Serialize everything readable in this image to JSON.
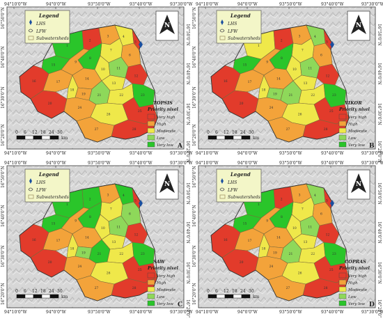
{
  "panels": [
    {
      "letter": "A",
      "method": "TOPSIS",
      "colors": [
        "#2ac52a",
        "#e23b2b",
        "#f3a33a",
        "#efe84a",
        "#e23b2b",
        "#f3a33a",
        "#efe84a",
        "#2ac52a",
        "#f3a33a",
        "#efe84a",
        "#8ed85a",
        "#e23b2b",
        "#efe84a",
        "#f3a33a",
        "#2ac52a",
        "#e23b2b",
        "#f3a33a",
        "#efe84a",
        "#f3a33a",
        "#e23b2b",
        "#8ed85a",
        "#efe84a",
        "#2ac52a",
        "#f3a33a",
        "#e23b2b",
        "#efe84a",
        "#f3a33a",
        "#e23b2b"
      ]
    },
    {
      "letter": "B",
      "method": "VIKOR",
      "colors": [
        "#efe84a",
        "#e23b2b",
        "#f3a33a",
        "#8ed85a",
        "#e23b2b",
        "#f3a33a",
        "#efe84a",
        "#2ac52a",
        "#f3a33a",
        "#efe84a",
        "#8ed85a",
        "#e23b2b",
        "#efe84a",
        "#f3a33a",
        "#2ac52a",
        "#e23b2b",
        "#f3a33a",
        "#efe84a",
        "#8ed85a",
        "#e23b2b",
        "#8ed85a",
        "#efe84a",
        "#2ac52a",
        "#f3a33a",
        "#e23b2b",
        "#efe84a",
        "#f3a33a",
        "#e23b2b"
      ]
    },
    {
      "letter": "C",
      "method": "SAW",
      "colors": [
        "#2ac52a",
        "#2ac52a",
        "#f3a33a",
        "#2ac52a",
        "#e23b2b",
        "#8ed85a",
        "#efe84a",
        "#2ac52a",
        "#f3a33a",
        "#efe84a",
        "#8ed85a",
        "#e23b2b",
        "#efe84a",
        "#f3a33a",
        "#2ac52a",
        "#e23b2b",
        "#f3a33a",
        "#efe84a",
        "#8ed85a",
        "#e23b2b",
        "#2ac52a",
        "#efe84a",
        "#2ac52a",
        "#f3a33a",
        "#e23b2b",
        "#efe84a",
        "#f3a33a",
        "#e23b2b"
      ]
    },
    {
      "letter": "D",
      "method": "COPRAS",
      "colors": [
        "#2ac52a",
        "#e23b2b",
        "#f3a33a",
        "#8ed85a",
        "#e23b2b",
        "#f3a33a",
        "#efe84a",
        "#2ac52a",
        "#f3a33a",
        "#efe84a",
        "#8ed85a",
        "#e23b2b",
        "#efe84a",
        "#f3a33a",
        "#2ac52a",
        "#e23b2b",
        "#f3a33a",
        "#efe84a",
        "#f3a33a",
        "#e23b2b",
        "#8ed85a",
        "#efe84a",
        "#2ac52a",
        "#f3a33a",
        "#e23b2b",
        "#efe84a",
        "#f3a33a",
        "#e23b2b"
      ]
    }
  ],
  "top_ticks": [
    "94°10'0\"W",
    "94°0'0\"W",
    "93°50'0\"W",
    "93°40'0\"W",
    "93°30'0\"W"
  ],
  "left_ticks": [
    "16°50'0\"N",
    "16°40'0\"N",
    "16°30'0\"N",
    "16°20'0\"N"
  ],
  "legend": {
    "title": "Legend",
    "items": [
      "LHS",
      "LFW",
      "Subwatersheds"
    ]
  },
  "priority": {
    "title": "Priority nivel",
    "levels": [
      "Very high",
      "High",
      "Moderate",
      "Low",
      "Very low"
    ],
    "colors": [
      "#e23b2b",
      "#f3a33a",
      "#efe84a",
      "#8ed85a",
      "#2ac52a"
    ]
  },
  "scale": {
    "ticks": [
      "0",
      "6",
      "12",
      "18",
      "24",
      "30"
    ],
    "unit": "km"
  },
  "north_label": "N"
}
